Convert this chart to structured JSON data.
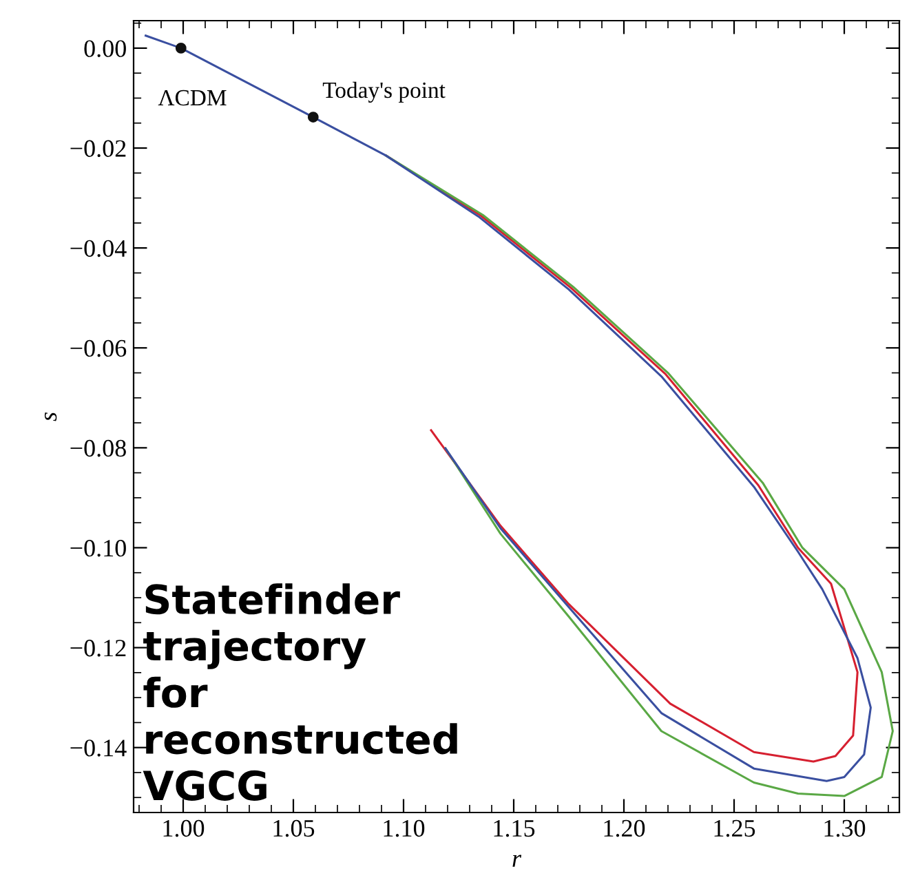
{
  "chart_data": {
    "type": "line",
    "xlabel": "r",
    "ylabel": "s",
    "xlim": [
      0.9775,
      1.325
    ],
    "ylim": [
      -0.153,
      0.0055
    ],
    "xticks": [
      {
        "value": 1.0,
        "label": "1.00"
      },
      {
        "value": 1.05,
        "label": "1.05"
      },
      {
        "value": 1.1,
        "label": "1.10"
      },
      {
        "value": 1.15,
        "label": "1.15"
      },
      {
        "value": 1.2,
        "label": "1.20"
      },
      {
        "value": 1.25,
        "label": "1.25"
      },
      {
        "value": 1.3,
        "label": "1.30"
      }
    ],
    "yticks": [
      {
        "value": 0.0,
        "label": "0.00"
      },
      {
        "value": -0.02,
        "label": "−0.02"
      },
      {
        "value": -0.04,
        "label": "−0.04"
      },
      {
        "value": -0.06,
        "label": "−0.06"
      },
      {
        "value": -0.08,
        "label": "−0.08"
      },
      {
        "value": -0.1,
        "label": "−0.10"
      },
      {
        "value": -0.12,
        "label": "−0.12"
      },
      {
        "value": -0.14,
        "label": "−0.14"
      }
    ],
    "grid": false,
    "legend": false,
    "marker": "none",
    "line_style": "solid",
    "series": [
      {
        "color": "#d62030",
        "x": [
          1.092,
          1.135,
          1.176,
          1.219,
          1.261,
          1.279,
          1.294,
          1.306,
          1.304,
          1.296,
          1.286,
          1.259,
          1.221,
          1.175,
          1.144,
          1.1125
        ],
        "values": [
          -0.0215,
          -0.0335,
          -0.048,
          -0.0653,
          -0.0875,
          -0.1,
          -0.1072,
          -0.1249,
          -0.1376,
          -0.1417,
          -0.1428,
          -0.1409,
          -0.1312,
          -0.1113,
          -0.0956,
          -0.0765
        ]
      },
      {
        "color": "#3a4fa0",
        "x": [
          0.983,
          0.999,
          1.059,
          1.092,
          1.134,
          1.175,
          1.217,
          1.259,
          1.279,
          1.29,
          1.306,
          1.312,
          1.309,
          1.3,
          1.292,
          1.259,
          1.217,
          1.175,
          1.144,
          1.119
        ],
        "values": [
          0.0025,
          0.0,
          -0.0138,
          -0.0215,
          -0.0337,
          -0.0483,
          -0.0657,
          -0.0878,
          -0.1008,
          -0.1083,
          -0.1221,
          -0.132,
          -0.1414,
          -0.1459,
          -0.1467,
          -0.1442,
          -0.1331,
          -0.1119,
          -0.0961,
          -0.0801
        ]
      },
      {
        "color": "#5aa845",
        "x": [
          1.092,
          1.136,
          1.177,
          1.22,
          1.263,
          1.281,
          1.3,
          1.317,
          1.322,
          1.317,
          1.3,
          1.279,
          1.259,
          1.217,
          1.175,
          1.144,
          1.119
        ],
        "values": [
          -0.0215,
          -0.0334,
          -0.0478,
          -0.065,
          -0.087,
          -0.1,
          -0.1083,
          -0.1249,
          -0.1367,
          -0.1459,
          -0.1497,
          -0.1492,
          -0.147,
          -0.1367,
          -0.1138,
          -0.0972,
          -0.0801
        ]
      },
      {
        "type": "scatter",
        "color": "#111111",
        "marker": "circle",
        "x": [
          0.999,
          1.059
        ],
        "values": [
          0.0,
          -0.0138
        ]
      }
    ],
    "annotations": [
      {
        "text": "ΛCDM",
        "x": 0.999,
        "y": 0.0
      },
      {
        "text": "Today's point",
        "x": 1.059,
        "y": -0.0138
      },
      "Statefinder\ntrajectory\nfor\nreconstructed\nVGCG"
    ]
  }
}
